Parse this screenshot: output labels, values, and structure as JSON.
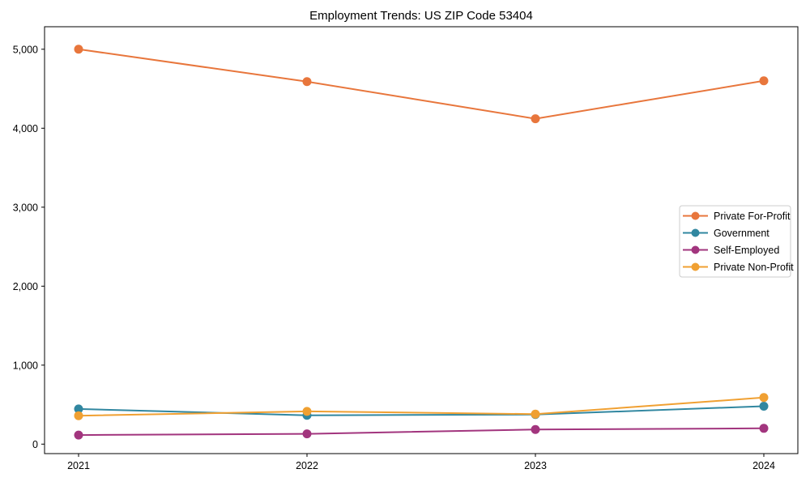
{
  "chart_data": {
    "type": "line",
    "title": "Employment Trends: US ZIP Code 53404",
    "x_categories": [
      "2021",
      "2022",
      "2023",
      "2024"
    ],
    "series": [
      {
        "name": "Private For-Profit",
        "color": "#e8763c",
        "values": [
          5000,
          4590,
          4120,
          4600
        ]
      },
      {
        "name": "Government",
        "color": "#3187a0",
        "values": [
          445,
          365,
          375,
          480
        ]
      },
      {
        "name": "Self-Employed",
        "color": "#a2357e",
        "values": [
          115,
          130,
          185,
          200
        ]
      },
      {
        "name": "Private Non-Profit",
        "color": "#f0a032",
        "values": [
          360,
          415,
          380,
          590
        ]
      }
    ],
    "yticks": {
      "values": [
        0,
        1000,
        2000,
        3000,
        4000,
        5000
      ],
      "labels": [
        "0",
        "1,000",
        "2,000",
        "3,000",
        "4,000",
        "5,000"
      ]
    },
    "ylim": [
      -120,
      5285
    ],
    "xlabel": "",
    "ylabel": "",
    "grid": false,
    "marker": "circle",
    "legend_position": "right",
    "colors": {
      "axis": "#000000",
      "legend_border": "#cccccc",
      "background": "#ffffff"
    }
  }
}
